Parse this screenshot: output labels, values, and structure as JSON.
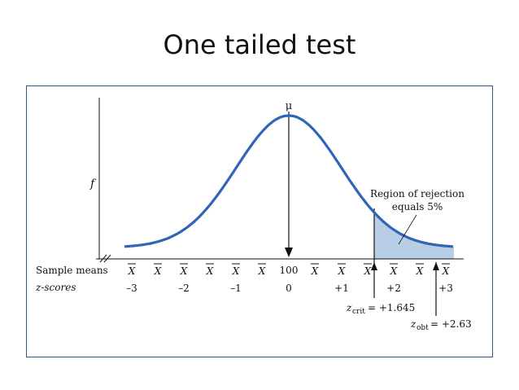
{
  "title": "One tailed test",
  "colors": {
    "curve": "#2f64b6",
    "rejection_fill": "#b8cde6",
    "frame": "#2f5597",
    "axis": "#111111"
  },
  "diagram": {
    "y_axis_label": "f",
    "mu_label": "μ",
    "rejection_label_line1": "Region of rejection",
    "rejection_label_line2": "equals 5%",
    "row_sample_means_label": "Sample means",
    "row_zscores_label": "z-scores",
    "xbar_symbol": "X",
    "center_mean_value": "100",
    "zscore_labels": [
      "–3",
      "–2",
      "–1",
      "0",
      "+1",
      "+2",
      "+3"
    ],
    "zcrit_prefix": "z",
    "zcrit_sub": "crit",
    "zcrit_value": "= +1.645",
    "zobt_prefix": "z",
    "zobt_sub": "obt",
    "zobt_value": "= +2.63"
  }
}
